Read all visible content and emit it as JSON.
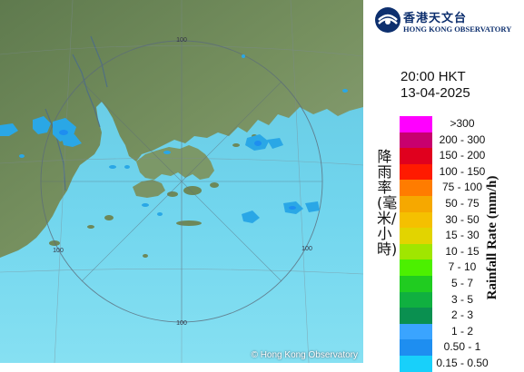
{
  "map": {
    "range_ring_label": "100",
    "copyright": "© Hong Kong Observatory",
    "colors": {
      "sea": "#6ed3ec",
      "land": "#6f8a5a",
      "echo": "#2aa7e6",
      "rings": "#5b6b7a"
    }
  },
  "header": {
    "logo_cn": "香港天文台",
    "logo_en": "HONG KONG OBSERVATORY",
    "logo_icon": "hko-logo-icon"
  },
  "timestamp": {
    "time": "20:00 HKT",
    "date": "13-04-2025"
  },
  "legend": {
    "title_cn": "降雨率(毫米/小時)",
    "title_en": "Rainfall Rate (mm/h)",
    "items": [
      {
        "label": ">300",
        "color": "#ff00ff"
      },
      {
        "label": "200 - 300",
        "color": "#c8006e"
      },
      {
        "label": "150 - 200",
        "color": "#e0001e"
      },
      {
        "label": "100 - 150",
        "color": "#ff1a00"
      },
      {
        "label": "75 - 100",
        "color": "#ff7c00"
      },
      {
        "label": "50 - 75",
        "color": "#f6a800"
      },
      {
        "label": "30 - 50",
        "color": "#f5c000"
      },
      {
        "label": "15 - 30",
        "color": "#e2d400"
      },
      {
        "label": "10 - 15",
        "color": "#a0e600"
      },
      {
        "label": "7 - 10",
        "color": "#4cf000"
      },
      {
        "label": "5 - 7",
        "color": "#20cc20"
      },
      {
        "label": "3 - 5",
        "color": "#10b040"
      },
      {
        "label": "2 - 3",
        "color": "#0a9050"
      },
      {
        "label": "1 - 2",
        "color": "#3aa4ff"
      },
      {
        "label": "0.50 - 1",
        "color": "#1e8ef0"
      },
      {
        "label": "0.15 - 0.50",
        "color": "#18d0fa"
      }
    ]
  }
}
